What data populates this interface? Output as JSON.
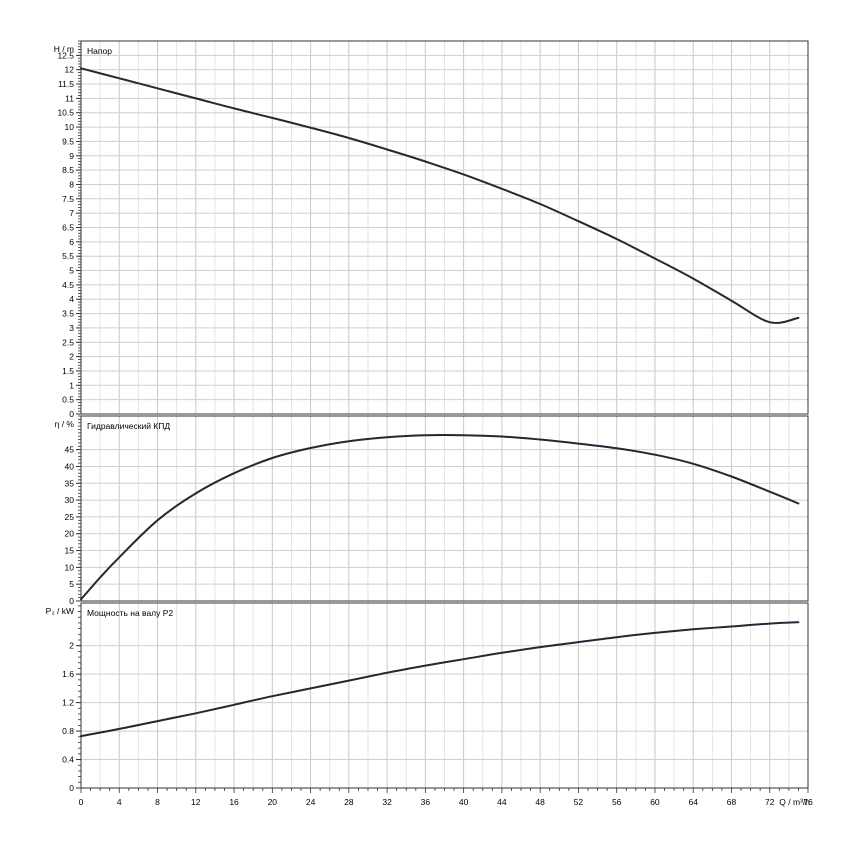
{
  "chart_data": [
    {
      "type": "line",
      "title": "Напор",
      "ylabel": "H / m",
      "xlim": [
        0,
        76
      ],
      "ylim": [
        0,
        13
      ],
      "yticks": [
        0,
        0.5,
        1,
        1.5,
        2,
        2.5,
        3,
        3.5,
        4,
        4.5,
        5,
        5.5,
        6,
        6.5,
        7,
        7.5,
        8,
        8.5,
        9,
        9.5,
        10,
        10.5,
        11,
        11.5,
        12,
        12.5
      ],
      "grid": true,
      "series": [
        {
          "x": [
            0,
            4,
            8,
            12,
            16,
            20,
            24,
            28,
            32,
            36,
            40,
            44,
            48,
            52,
            56,
            60,
            64,
            68,
            72,
            75
          ],
          "y": [
            12.05,
            11.7,
            11.35,
            11.0,
            10.65,
            10.32,
            9.98,
            9.62,
            9.22,
            8.8,
            8.35,
            7.85,
            7.32,
            6.72,
            6.1,
            5.42,
            4.72,
            3.95,
            3.2,
            3.35
          ],
          "color": "#1f2a35"
        }
      ]
    },
    {
      "type": "line",
      "title": "Гидравлический КПД",
      "ylabel": "η / %",
      "xlim": [
        0,
        76
      ],
      "ylim": [
        0,
        55
      ],
      "yticks": [
        0,
        5,
        10,
        15,
        20,
        25,
        30,
        35,
        40,
        45
      ],
      "grid": true,
      "series": [
        {
          "x": [
            0,
            2,
            4,
            8,
            12,
            16,
            20,
            24,
            28,
            32,
            36,
            40,
            44,
            48,
            52,
            56,
            60,
            64,
            68,
            72,
            75
          ],
          "y": [
            0.5,
            7,
            13,
            24,
            32,
            38,
            42.5,
            45.5,
            47.5,
            48.7,
            49.3,
            49.3,
            48.9,
            48,
            46.8,
            45.4,
            43.5,
            40.8,
            37,
            32.5,
            29
          ],
          "color": "#1f2a35"
        }
      ]
    },
    {
      "type": "line",
      "title": "Мощность на валу P2",
      "ylabel": "P₂ / kW",
      "xlabel": "Q / m³/h",
      "xlim": [
        0,
        76
      ],
      "ylim": [
        0,
        2.6
      ],
      "yticks": [
        0,
        0.4,
        0.8,
        1.2,
        1.6,
        2
      ],
      "xticks": [
        0,
        4,
        8,
        12,
        16,
        20,
        24,
        28,
        32,
        36,
        40,
        44,
        48,
        52,
        56,
        60,
        64,
        68,
        72,
        76
      ],
      "grid": true,
      "series": [
        {
          "x": [
            0,
            4,
            8,
            12,
            16,
            20,
            24,
            28,
            32,
            36,
            40,
            44,
            48,
            52,
            56,
            60,
            64,
            68,
            72,
            75
          ],
          "y": [
            0.73,
            0.83,
            0.94,
            1.05,
            1.17,
            1.29,
            1.4,
            1.51,
            1.62,
            1.72,
            1.81,
            1.9,
            1.98,
            2.05,
            2.12,
            2.18,
            2.23,
            2.27,
            2.31,
            2.33
          ],
          "color": "#1f2a35"
        }
      ]
    }
  ]
}
